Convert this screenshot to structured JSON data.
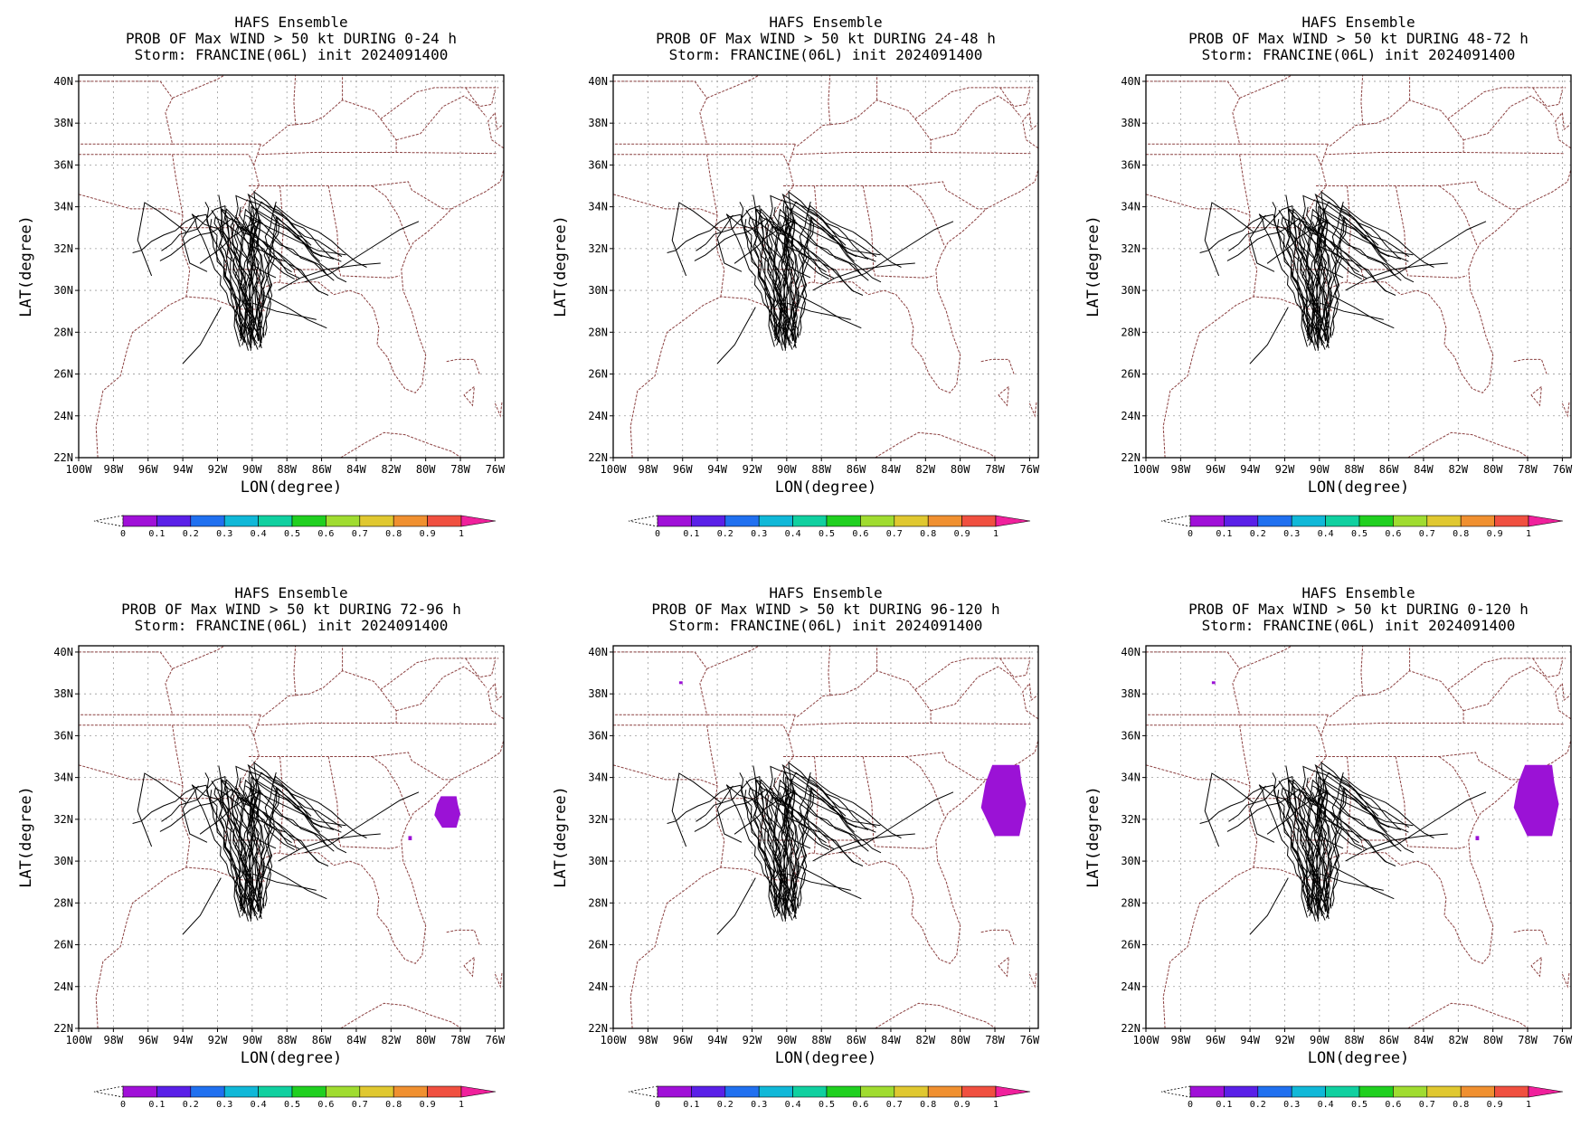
{
  "panels": [
    {
      "title1": "HAFS Ensemble",
      "title2": "PROB OF Max WIND > 50 kt DURING  0-24 h",
      "title3": "Storm: FRANCINE(06L) init 2024091400"
    },
    {
      "title1": "HAFS Ensemble",
      "title2": "PROB OF Max WIND > 50 kt DURING 24-48 h",
      "title3": "Storm: FRANCINE(06L) init 2024091400"
    },
    {
      "title1": "HAFS Ensemble",
      "title2": "PROB OF Max WIND > 50 kt DURING 48-72 h",
      "title3": "Storm: FRANCINE(06L) init 2024091400"
    },
    {
      "title1": "HAFS Ensemble",
      "title2": "PROB OF Max WIND > 50 kt DURING 72-96 h",
      "title3": "Storm: FRANCINE(06L) init 2024091400"
    },
    {
      "title1": "HAFS Ensemble",
      "title2": "PROB OF Max WIND > 50 kt DURING 96-120 h",
      "title3": "Storm: FRANCINE(06L) init 2024091400"
    },
    {
      "title1": "HAFS Ensemble",
      "title2": "PROB OF Max WIND > 50 kt DURING 0-120 h",
      "title3": "Storm: FRANCINE(06L) init 2024091400"
    }
  ],
  "axes": {
    "xlabel": "LON(degree)",
    "ylabel": "LAT(degree)",
    "lon_ticks": [
      "100W",
      "98W",
      "96W",
      "94W",
      "92W",
      "90W",
      "88W",
      "86W",
      "84W",
      "82W",
      "80W",
      "78W",
      "76W"
    ],
    "lat_ticks": [
      "40N",
      "38N",
      "36N",
      "34N",
      "32N",
      "30N",
      "28N",
      "26N",
      "24N",
      "22N"
    ],
    "lon_range": [
      -100,
      -75.5
    ],
    "lat_range": [
      22,
      40.3
    ]
  },
  "colorbar": {
    "labels": [
      "0",
      "0.1",
      "0.2",
      "0.3",
      "0.4",
      "0.5",
      "0.6",
      "0.7",
      "0.8",
      "0.9",
      "1"
    ],
    "colors": [
      "#a010d8",
      "#5a20e8",
      "#2070f0",
      "#10b8d8",
      "#10d0a0",
      "#20d020",
      "#a0dc30",
      "#e0c830",
      "#f09030",
      "#f05040"
    ],
    "over_color": "#f0209c"
  },
  "colors": {
    "boundary": "#8b4040",
    "track": "#000000",
    "prob_fill": "#9b12d6",
    "grid": "#9a9a9a"
  },
  "chart_data": {
    "type": "map",
    "storm": "FRANCINE(06L)",
    "init": "2024091400",
    "probability_areas": [
      [],
      [],
      [],
      [
        {
          "lon_range": [
            -79.5,
            -78.0
          ],
          "lat_range": [
            31.6,
            33.1
          ],
          "value": 0.05
        },
        {
          "lon_range": [
            -81.0,
            -80.8
          ],
          "lat_range": [
            31.0,
            31.2
          ],
          "value": 0.05
        }
      ],
      [
        {
          "lon_range": [
            -78.8,
            -76.2
          ],
          "lat_range": [
            31.2,
            34.6
          ],
          "value": 0.05
        },
        {
          "lon_range": [
            -96.2,
            -96.0
          ],
          "lat_range": [
            38.5,
            38.6
          ],
          "value": 0.05
        }
      ],
      [
        {
          "lon_range": [
            -78.8,
            -76.2
          ],
          "lat_range": [
            31.2,
            34.6
          ],
          "value": 0.05
        },
        {
          "lon_range": [
            -81.0,
            -80.8
          ],
          "lat_range": [
            31.0,
            31.2
          ],
          "value": 0.05
        },
        {
          "lon_range": [
            -96.2,
            -96.0
          ],
          "lat_range": [
            38.5,
            38.6
          ],
          "value": 0.05
        }
      ]
    ]
  }
}
